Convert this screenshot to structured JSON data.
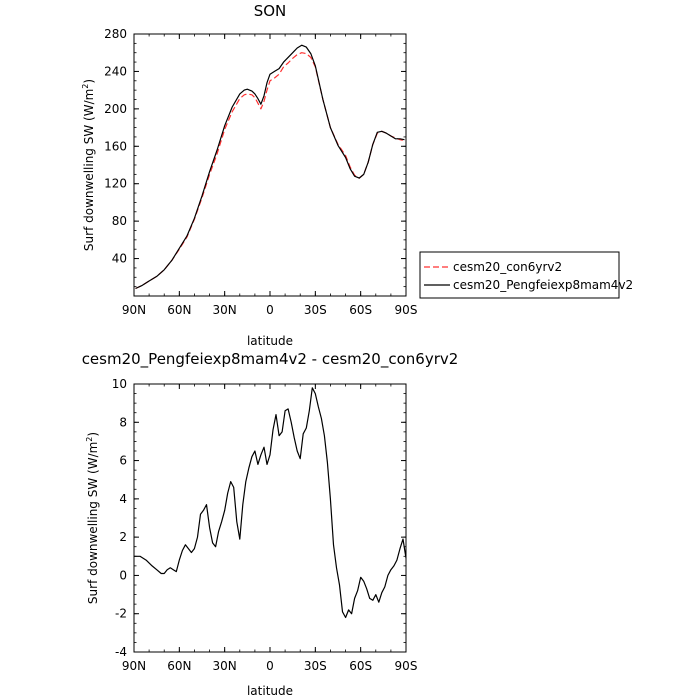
{
  "chart_data": [
    {
      "type": "line",
      "title": "SON",
      "xlabel": "latitude",
      "ylabel": "Surf downwelling SW (W/m",
      "ylabel_sup": "2",
      "ylabel_tail": ")",
      "xlim": [
        90,
        -90
      ],
      "ylim": [
        0,
        280
      ],
      "xticks": [
        90,
        60,
        30,
        0,
        -30,
        -60,
        -90
      ],
      "xtick_labels": [
        "90N",
        "60N",
        "30N",
        "0",
        "30S",
        "60S",
        "90S"
      ],
      "yticks": [
        40,
        80,
        120,
        160,
        200,
        240,
        280
      ],
      "ytick_labels": [
        "40",
        "80",
        "120",
        "160",
        "200",
        "240",
        "280"
      ],
      "legend_position": "right",
      "series": [
        {
          "name": "cesm20_con6yrv2",
          "color": "#ff3030",
          "style": "dashed",
          "x": [
            89,
            85,
            80,
            75,
            70,
            65,
            60,
            55,
            50,
            45,
            40,
            35,
            30,
            25,
            20,
            17,
            15,
            12,
            10,
            8,
            6,
            4,
            2,
            0,
            -3,
            -6,
            -9,
            -12,
            -15,
            -18,
            -21,
            -24,
            -27,
            -30,
            -35,
            -40,
            -45,
            -50,
            -53,
            -56,
            -59,
            -62,
            -65,
            -68,
            -71,
            -74,
            -77,
            -80,
            -83,
            -86,
            -89
          ],
          "y": [
            8,
            11,
            16,
            21,
            28,
            38,
            50,
            63,
            82,
            105,
            130,
            152,
            178,
            197,
            211,
            215,
            216,
            215,
            212,
            206,
            200,
            208,
            220,
            230,
            233,
            237,
            245,
            249,
            254,
            258,
            260,
            259,
            255,
            245,
            210,
            180,
            162,
            150,
            138,
            129,
            126,
            130,
            143,
            162,
            174,
            176,
            174,
            171,
            169,
            167,
            166
          ]
        },
        {
          "name": "cesm20_Pengfeiexp8mam4v2",
          "color": "#000000",
          "style": "solid",
          "x": [
            89,
            85,
            80,
            75,
            70,
            65,
            60,
            55,
            50,
            45,
            40,
            35,
            30,
            25,
            20,
            17,
            15,
            12,
            10,
            8,
            6,
            4,
            2,
            0,
            -3,
            -6,
            -9,
            -12,
            -15,
            -18,
            -21,
            -24,
            -27,
            -30,
            -35,
            -40,
            -45,
            -50,
            -53,
            -56,
            -59,
            -62,
            -65,
            -68,
            -71,
            -74,
            -77,
            -80,
            -83,
            -86,
            -89
          ],
          "y": [
            8,
            11,
            16,
            21,
            28,
            38,
            51,
            64,
            83,
            107,
            133,
            156,
            182,
            202,
            216,
            220,
            221,
            219,
            216,
            211,
            205,
            214,
            228,
            237,
            240,
            243,
            250,
            255,
            260,
            265,
            268,
            266,
            259,
            246,
            210,
            180,
            161,
            148,
            136,
            128,
            126,
            130,
            143,
            162,
            175,
            176,
            174,
            171,
            168,
            168,
            167
          ]
        }
      ]
    },
    {
      "type": "line",
      "title": "cesm20_Pengfeiexp8mam4v2 - cesm20_con6yrv2",
      "xlabel": "latitude",
      "ylabel": "Surf downwelling SW (W/m",
      "ylabel_sup": "2",
      "ylabel_tail": ")",
      "xlim": [
        90,
        -90
      ],
      "ylim": [
        -4,
        10
      ],
      "xticks": [
        90,
        60,
        30,
        0,
        -30,
        -60,
        -90
      ],
      "xtick_labels": [
        "90N",
        "60N",
        "30N",
        "0",
        "30S",
        "60S",
        "90S"
      ],
      "yticks": [
        -4,
        -2,
        0,
        2,
        4,
        6,
        8,
        10
      ],
      "ytick_labels": [
        "-4",
        "-2",
        "0",
        "2",
        "4",
        "6",
        "8",
        "10"
      ],
      "series": [
        {
          "color": "#000000",
          "style": "solid",
          "x": [
            90,
            86,
            82,
            78,
            75,
            72,
            70,
            68,
            66,
            64,
            62,
            60,
            58,
            56,
            54,
            52,
            50,
            48,
            46,
            44,
            42,
            40,
            38,
            36,
            34,
            32,
            30,
            28,
            26,
            24,
            22,
            20,
            18,
            16,
            14,
            12,
            10,
            8,
            6,
            4,
            2,
            0,
            -2,
            -4,
            -6,
            -8,
            -10,
            -12,
            -14,
            -16,
            -18,
            -20,
            -22,
            -24,
            -26,
            -28,
            -30,
            -32,
            -34,
            -36,
            -38,
            -40,
            -42,
            -44,
            -46,
            -48,
            -50,
            -52,
            -54,
            -56,
            -58,
            -60,
            -62,
            -64,
            -66,
            -68,
            -70,
            -72,
            -74,
            -76,
            -78,
            -80,
            -82,
            -84,
            -86,
            -88,
            -90
          ],
          "y": [
            1.0,
            1.0,
            0.8,
            0.5,
            0.3,
            0.1,
            0.1,
            0.3,
            0.4,
            0.3,
            0.2,
            0.8,
            1.3,
            1.6,
            1.4,
            1.2,
            1.4,
            2.0,
            3.2,
            3.4,
            3.7,
            2.5,
            1.7,
            1.5,
            2.3,
            2.8,
            3.4,
            4.3,
            4.9,
            4.6,
            2.8,
            1.9,
            3.7,
            4.9,
            5.6,
            6.2,
            6.5,
            5.8,
            6.3,
            6.7,
            5.8,
            6.3,
            7.6,
            8.4,
            7.3,
            7.5,
            8.6,
            8.7,
            8.0,
            7.2,
            6.5,
            6.1,
            7.4,
            7.7,
            8.6,
            9.8,
            9.5,
            8.8,
            8.2,
            7.3,
            5.9,
            4.0,
            1.6,
            0.4,
            -0.5,
            -1.9,
            -2.2,
            -1.8,
            -2.0,
            -1.2,
            -0.8,
            -0.1,
            -0.3,
            -0.7,
            -1.2,
            -1.3,
            -1.0,
            -1.4,
            -0.9,
            -0.6,
            0.0,
            0.3,
            0.5,
            0.8,
            1.4,
            1.9,
            0.9
          ]
        }
      ]
    }
  ]
}
